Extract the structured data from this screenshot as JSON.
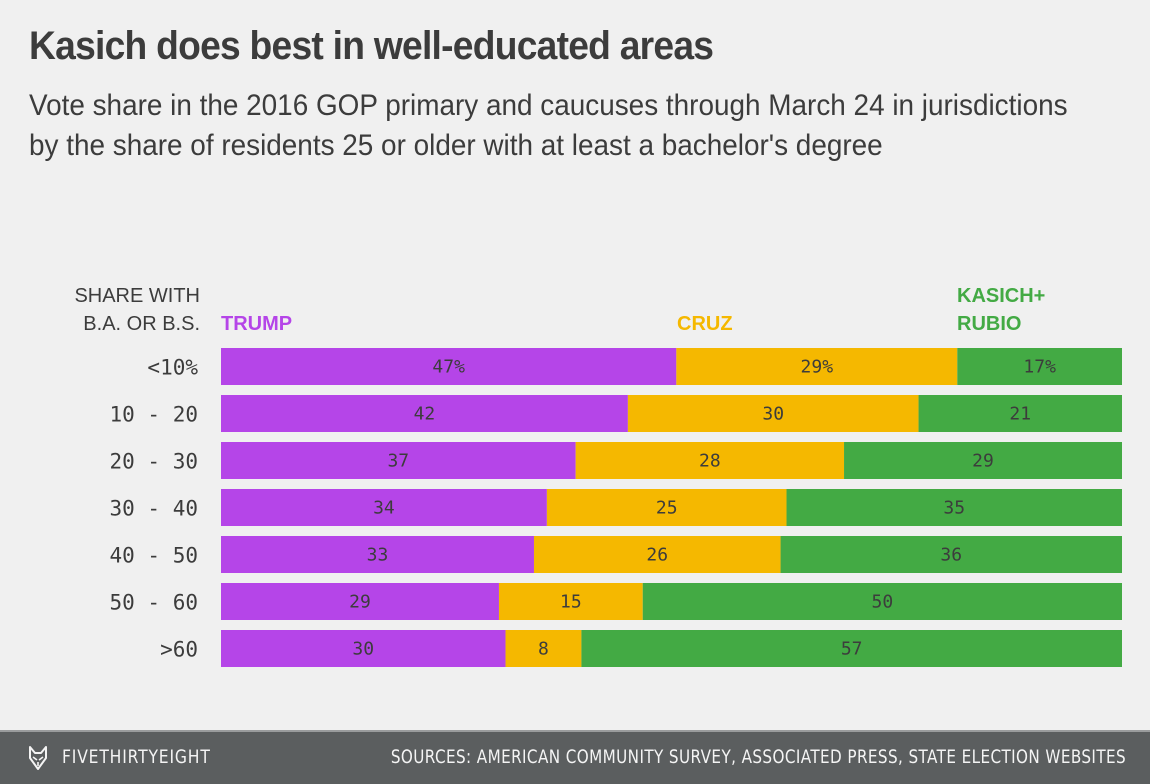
{
  "header": {
    "title": "Kasich does best in well-educated areas",
    "subtitle": "Vote share in the 2016 GOP primary and caucuses through March 24 in jurisdictions by the share of residents 25 or older with at least a bachelor's degree"
  },
  "chart_data": {
    "type": "bar",
    "orientation": "horizontal",
    "stacked": "100%",
    "title": "Kasich does best in well-educated areas",
    "subtitle": "Vote share in the 2016 GOP primary and caucuses through March 24 in jurisdictions by the share of residents 25 or older with at least a bachelor's degree",
    "ylabel_lines": [
      "SHARE WITH",
      "B.A. OR B.S."
    ],
    "xlabel": "",
    "categories": [
      "<10%",
      "10-20",
      "20-30",
      "30-40",
      "40-50",
      "50-60",
      ">60"
    ],
    "series": [
      {
        "name": "TRUMP",
        "legend_lines": [
          "TRUMP"
        ],
        "color": "#b545e8",
        "values": [
          47,
          42,
          37,
          34,
          33,
          29,
          30
        ]
      },
      {
        "name": "CRUZ",
        "legend_lines": [
          "CRUZ"
        ],
        "color": "#f5b800",
        "values": [
          29,
          30,
          28,
          25,
          26,
          15,
          8
        ]
      },
      {
        "name": "KASICH+RUBIO",
        "legend_lines": [
          "KASICH+",
          "RUBIO"
        ],
        "color": "#43aa44",
        "values": [
          17,
          21,
          29,
          35,
          36,
          50,
          57
        ]
      }
    ],
    "first_row_suffix": "%",
    "legend_position": "top",
    "grid": false
  },
  "footer": {
    "brand": "FIVETHIRTYEIGHT",
    "source": "SOURCES: AMERICAN COMMUNITY SURVEY, ASSOCIATED PRESS, STATE ELECTION WEBSITES",
    "logo_icon": "fox-icon"
  }
}
